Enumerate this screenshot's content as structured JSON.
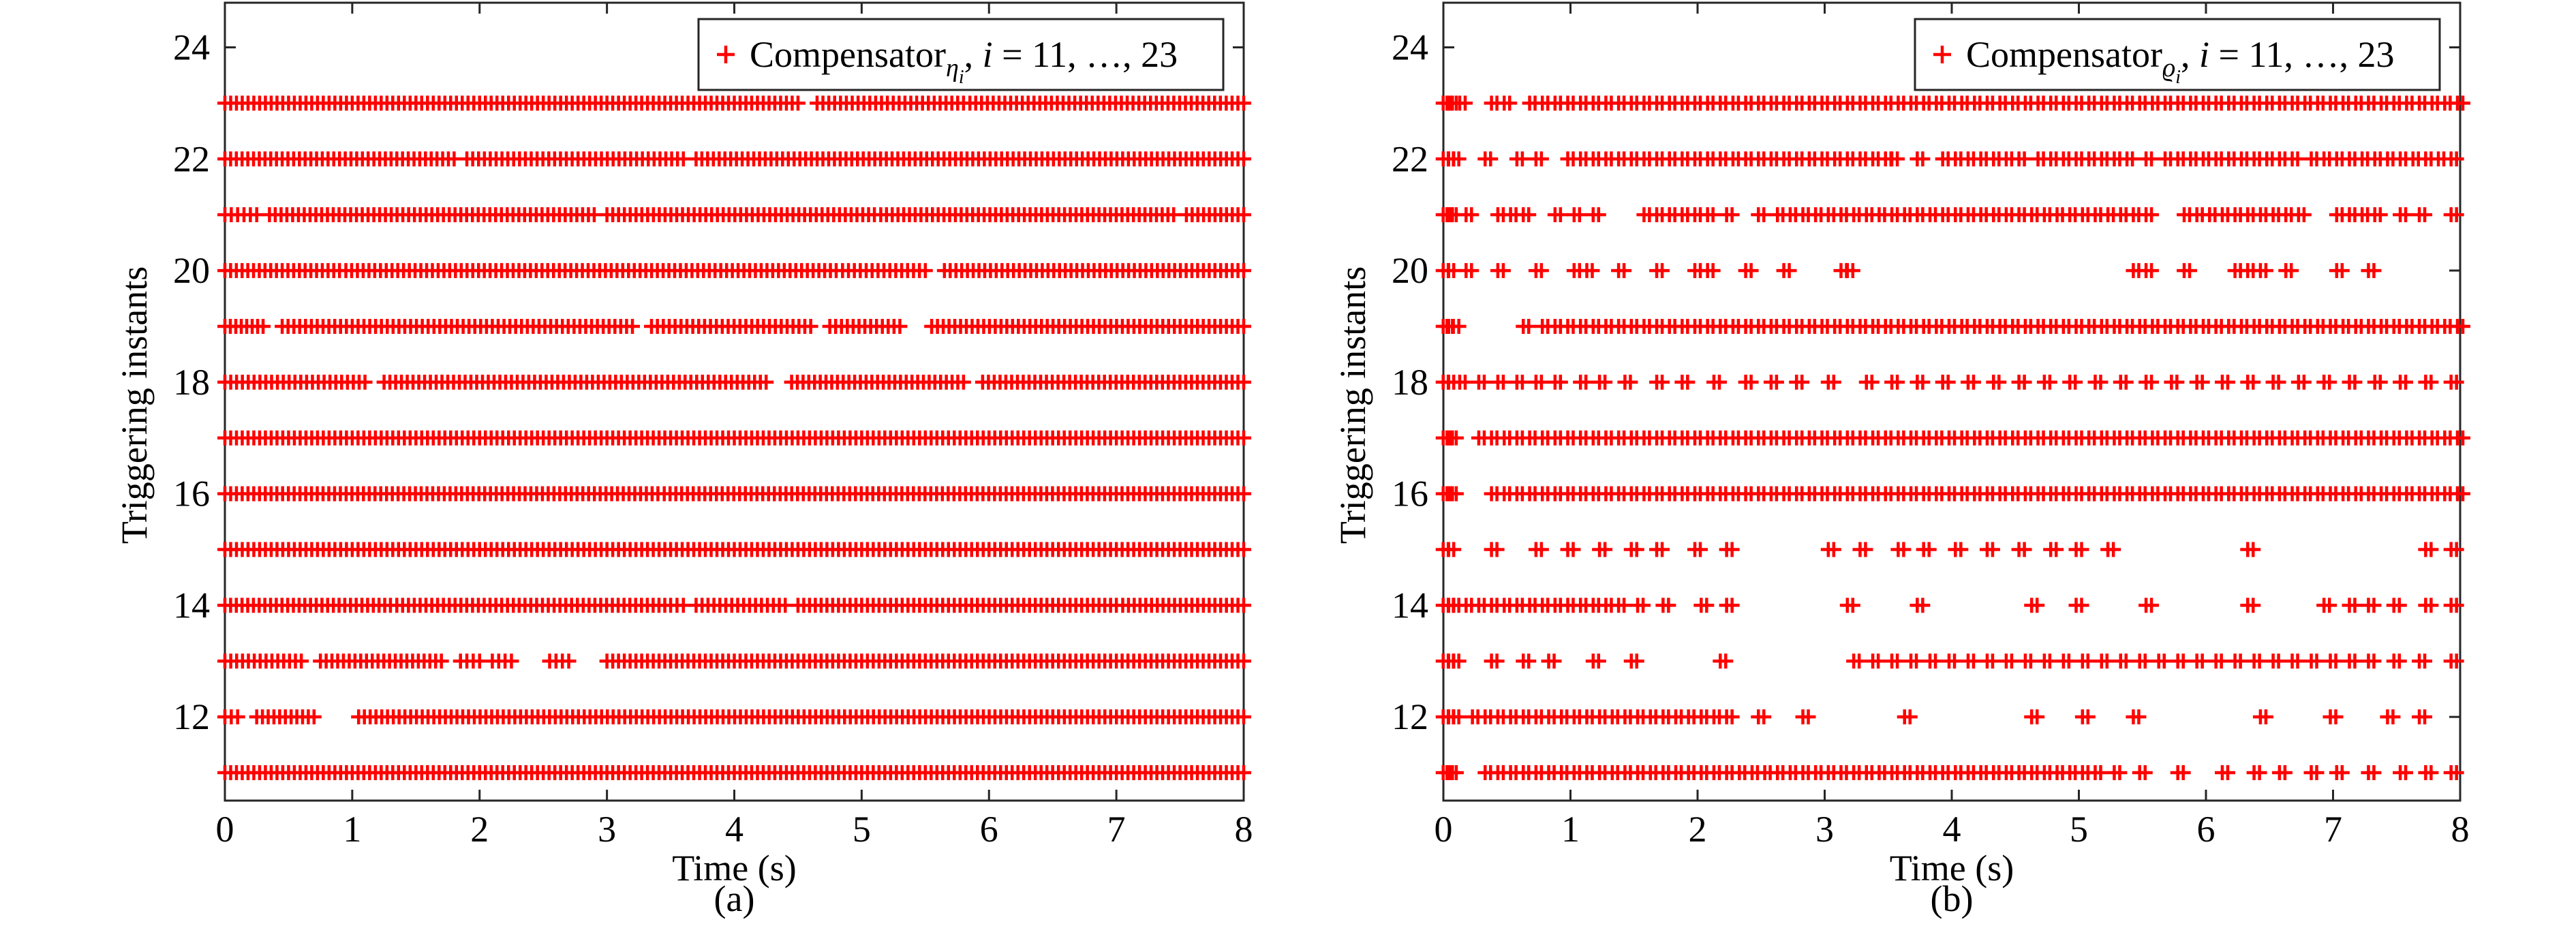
{
  "chart_data": [
    {
      "type": "scatter",
      "panel": "(a)",
      "xlabel": "Time (s)",
      "ylabel": "Triggering instants",
      "xlim": [
        0,
        8
      ],
      "ylim": [
        10.5,
        24.8
      ],
      "xticks": [
        0,
        1,
        2,
        3,
        4,
        5,
        6,
        7,
        8
      ],
      "yticks": [
        12,
        14,
        16,
        18,
        20,
        22,
        24
      ],
      "grid": false,
      "legend_position": "top-right",
      "marker": "+",
      "color": "#ff0000",
      "legend": {
        "text": "Compensator",
        "subscript": "η",
        "subsub": "i",
        "suffix_i": "i",
        "suffix_rest": " = 11, …, 23"
      },
      "series": [
        {
          "y": 11,
          "segments": [
            [
              0.0,
              8.0
            ]
          ]
        },
        {
          "y": 12,
          "segments": [
            [
              0.0,
              0.1
            ],
            [
              0.25,
              0.7
            ],
            [
              1.05,
              8.0
            ]
          ]
        },
        {
          "y": 13,
          "segments": [
            [
              0.0,
              0.6
            ],
            [
              0.75,
              1.7
            ],
            [
              1.85,
              2.0
            ],
            [
              2.1,
              2.25
            ],
            [
              2.55,
              2.7
            ],
            [
              3.0,
              8.0
            ]
          ]
        },
        {
          "y": 14,
          "segments": [
            [
              0.0,
              1.3
            ],
            [
              1.35,
              3.5
            ],
            [
              3.55,
              3.6
            ],
            [
              3.7,
              4.4
            ],
            [
              4.5,
              7.0
            ],
            [
              7.05,
              8.0
            ]
          ]
        },
        {
          "y": 15,
          "segments": [
            [
              0.0,
              8.0
            ]
          ]
        },
        {
          "y": 16,
          "segments": [
            [
              0.0,
              3.4
            ],
            [
              3.45,
              8.0
            ]
          ]
        },
        {
          "y": 17,
          "segments": [
            [
              0.0,
              8.0
            ]
          ]
        },
        {
          "y": 18,
          "segments": [
            [
              0.0,
              1.1
            ],
            [
              1.25,
              4.25
            ],
            [
              4.45,
              5.8
            ],
            [
              5.95,
              8.0
            ]
          ]
        },
        {
          "y": 19,
          "segments": [
            [
              0.0,
              0.3
            ],
            [
              0.45,
              3.2
            ],
            [
              3.35,
              4.6
            ],
            [
              4.75,
              5.3
            ],
            [
              5.55,
              8.0
            ]
          ]
        },
        {
          "y": 20,
          "segments": [
            [
              0.0,
              0.9
            ],
            [
              0.95,
              4.8
            ],
            [
              4.85,
              5.5
            ],
            [
              5.65,
              8.0
            ]
          ]
        },
        {
          "y": 21,
          "segments": [
            [
              0.0,
              0.25
            ],
            [
              0.35,
              2.9
            ],
            [
              3.0,
              5.1
            ],
            [
              5.15,
              7.45
            ],
            [
              7.55,
              8.0
            ]
          ]
        },
        {
          "y": 22,
          "segments": [
            [
              0.0,
              1.8
            ],
            [
              1.9,
              3.6
            ],
            [
              3.7,
              8.0
            ]
          ]
        },
        {
          "y": 23,
          "segments": [
            [
              0.0,
              4.5
            ],
            [
              4.65,
              5.8
            ],
            [
              5.85,
              8.0
            ]
          ]
        }
      ]
    },
    {
      "type": "scatter",
      "panel": "(b)",
      "xlabel": "Time (s)",
      "ylabel": "Triggering instants",
      "xlim": [
        0,
        8
      ],
      "ylim": [
        10.5,
        24.8
      ],
      "xticks": [
        0,
        1,
        2,
        3,
        4,
        5,
        6,
        7,
        8
      ],
      "yticks": [
        12,
        14,
        16,
        18,
        20,
        22,
        24
      ],
      "grid": false,
      "legend_position": "top-right",
      "marker": "+",
      "color": "#ff0000",
      "legend": {
        "text": "Compensator",
        "subscript": "ϱ",
        "subsub": "i",
        "suffix_i": "i",
        "suffix_rest": " = 11, …, 23"
      },
      "series": [
        {
          "y": 11,
          "points": [
            0.02,
            0.05,
            0.08,
            0.35,
            0.45,
            0.55,
            0.65,
            0.75,
            0.85,
            0.95,
            1.05,
            1.15,
            1.25,
            1.35,
            1.45,
            1.55,
            1.65,
            1.75,
            1.85,
            1.95,
            2.05,
            2.15,
            2.25,
            2.35,
            2.45,
            2.55,
            2.65,
            2.75,
            2.85,
            2.95,
            3.05,
            3.15,
            3.25,
            3.35,
            3.45,
            3.55,
            3.65,
            3.75,
            3.85,
            3.95,
            4.05,
            4.15,
            4.25,
            4.35,
            4.45,
            4.55,
            4.65,
            4.75,
            4.85,
            4.95,
            5.05,
            5.15,
            5.3,
            5.5,
            5.8,
            6.15,
            6.4,
            6.6,
            6.85,
            7.05,
            7.3,
            7.55,
            7.75,
            7.95
          ]
        },
        {
          "y": 12,
          "points": [
            0.02,
            0.06,
            0.1,
            0.25,
            0.35,
            0.45,
            0.55,
            0.65,
            0.75,
            0.85,
            0.95,
            1.05,
            1.15,
            1.25,
            1.35,
            1.45,
            1.55,
            1.65,
            1.75,
            1.85,
            1.95,
            2.05,
            2.15,
            2.25,
            2.5,
            2.85,
            3.65,
            4.65,
            5.05,
            5.45,
            6.45,
            7.0,
            7.45,
            7.7
          ]
        },
        {
          "y": 13,
          "points": [
            0.02,
            0.06,
            0.1,
            0.4,
            0.65,
            0.85,
            1.2,
            1.5,
            2.2,
            3.25,
            3.4,
            3.55,
            3.7,
            3.85,
            4.0,
            4.15,
            4.3,
            4.45,
            4.6,
            4.75,
            4.9,
            5.05,
            5.2,
            5.35,
            5.5,
            5.65,
            5.8,
            5.95,
            6.1,
            6.25,
            6.4,
            6.55,
            6.7,
            6.85,
            7.0,
            7.15,
            7.3,
            7.5,
            7.7,
            7.95
          ]
        },
        {
          "y": 14,
          "points": [
            0.02,
            0.06,
            0.1,
            0.2,
            0.3,
            0.4,
            0.5,
            0.6,
            0.7,
            0.8,
            0.9,
            1.0,
            1.1,
            1.2,
            1.3,
            1.4,
            1.55,
            1.75,
            2.05,
            2.25,
            3.2,
            3.75,
            4.65,
            5.0,
            5.55,
            6.35,
            6.95,
            7.15,
            7.3,
            7.5,
            7.75,
            7.95
          ]
        },
        {
          "y": 15,
          "points": [
            0.02,
            0.06,
            0.4,
            0.75,
            1.0,
            1.25,
            1.5,
            1.7,
            2.0,
            2.25,
            3.05,
            3.3,
            3.6,
            3.8,
            4.05,
            4.3,
            4.55,
            4.8,
            5.0,
            5.25,
            6.35,
            7.75,
            7.95
          ]
        },
        {
          "y": 16,
          "points": [
            0.02,
            0.05,
            0.08,
            0.4,
            0.5,
            0.6,
            0.7,
            0.8,
            0.9,
            1.0,
            1.1,
            1.2,
            1.3,
            1.4,
            1.5,
            1.6,
            1.7,
            1.8,
            1.9,
            2.0,
            2.1,
            2.2,
            2.3,
            2.4,
            2.5,
            2.6,
            2.7,
            2.8,
            2.9,
            3.0,
            3.1,
            3.2,
            3.3,
            3.4,
            3.5,
            3.6,
            3.7,
            3.8,
            3.9,
            4.0,
            4.1,
            4.2,
            4.3,
            4.4,
            4.5,
            4.6,
            4.7,
            4.8,
            4.9,
            5.0,
            5.1,
            5.2,
            5.3,
            5.4,
            5.5,
            5.6,
            5.7,
            5.8,
            5.9,
            6.0,
            6.1,
            6.2,
            6.3,
            6.4,
            6.5,
            6.6,
            6.7,
            6.8,
            6.9,
            7.0,
            7.1,
            7.2,
            7.3,
            7.4,
            7.5,
            7.6,
            7.7,
            7.8,
            7.9,
            8.0
          ]
        },
        {
          "y": 17,
          "points": [
            0.02,
            0.05,
            0.08,
            0.3,
            0.4,
            0.5,
            0.6,
            0.7,
            0.8,
            0.9,
            1.0,
            1.1,
            1.2,
            1.3,
            1.4,
            1.5,
            1.6,
            1.7,
            1.8,
            1.9,
            2.0,
            2.1,
            2.2,
            2.3,
            2.4,
            2.5,
            2.6,
            2.7,
            2.8,
            2.9,
            3.0,
            3.1,
            3.2,
            3.3,
            3.4,
            3.5,
            3.6,
            3.7,
            3.8,
            3.9,
            4.0,
            4.1,
            4.2,
            4.3,
            4.4,
            4.5,
            4.6,
            4.7,
            4.8,
            4.9,
            5.0,
            5.1,
            5.2,
            5.3,
            5.4,
            5.5,
            5.6,
            5.7,
            5.8,
            5.9,
            6.0,
            6.1,
            6.2,
            6.3,
            6.4,
            6.5,
            6.6,
            6.7,
            6.8,
            6.9,
            7.0,
            7.1,
            7.2,
            7.3,
            7.4,
            7.5,
            7.6,
            7.7,
            7.8,
            7.9,
            8.0
          ]
        },
        {
          "y": 18,
          "points": [
            0.02,
            0.06,
            0.15,
            0.3,
            0.45,
            0.6,
            0.75,
            0.9,
            1.1,
            1.25,
            1.45,
            1.7,
            1.9,
            2.15,
            2.4,
            2.6,
            2.8,
            3.05,
            3.35,
            3.55,
            3.75,
            3.95,
            4.15,
            4.35,
            4.55,
            4.75,
            4.95,
            5.15,
            5.35,
            5.55,
            5.75,
            5.95,
            6.15,
            6.35,
            6.55,
            6.75,
            6.95,
            7.15,
            7.35,
            7.55,
            7.75,
            7.95
          ]
        },
        {
          "y": 19,
          "points": [
            0.02,
            0.05,
            0.1,
            0.65,
            0.8,
            0.9,
            1.0,
            1.1,
            1.2,
            1.3,
            1.4,
            1.5,
            1.6,
            1.7,
            1.8,
            1.9,
            2.0,
            2.1,
            2.2,
            2.3,
            2.4,
            2.5,
            2.6,
            2.7,
            2.8,
            2.9,
            3.0,
            3.1,
            3.2,
            3.3,
            3.4,
            3.5,
            3.6,
            3.7,
            3.8,
            3.9,
            4.0,
            4.1,
            4.2,
            4.3,
            4.4,
            4.5,
            4.6,
            4.7,
            4.8,
            4.9,
            5.0,
            5.1,
            5.2,
            5.3,
            5.4,
            5.5,
            5.6,
            5.7,
            5.8,
            5.9,
            6.0,
            6.1,
            6.2,
            6.3,
            6.4,
            6.5,
            6.6,
            6.7,
            6.8,
            6.9,
            7.0,
            7.1,
            7.2,
            7.3,
            7.4,
            7.5,
            7.6,
            7.7,
            7.8,
            7.9,
            8.0
          ]
        },
        {
          "y": 20,
          "points": [
            0.02,
            0.06,
            0.2,
            0.45,
            0.75,
            1.05,
            1.15,
            1.4,
            1.7,
            2.0,
            2.1,
            2.4,
            2.7,
            3.15,
            3.2,
            5.45,
            5.55,
            5.85,
            6.25,
            6.35,
            6.45,
            6.65,
            7.05,
            7.3
          ]
        },
        {
          "y": 21,
          "points": [
            0.02,
            0.05,
            0.08,
            0.2,
            0.45,
            0.55,
            0.65,
            0.9,
            1.05,
            1.2,
            1.6,
            1.7,
            1.8,
            1.9,
            2.0,
            2.1,
            2.25,
            2.5,
            2.65,
            2.75,
            2.85,
            2.95,
            3.05,
            3.15,
            3.25,
            3.35,
            3.45,
            3.55,
            3.65,
            3.75,
            3.85,
            3.95,
            4.05,
            4.15,
            4.25,
            4.35,
            4.45,
            4.55,
            4.65,
            4.75,
            4.85,
            4.95,
            5.05,
            5.15,
            5.25,
            5.35,
            5.45,
            5.55,
            5.85,
            5.95,
            6.05,
            6.15,
            6.25,
            6.35,
            6.45,
            6.55,
            6.65,
            6.75,
            7.05,
            7.15,
            7.25,
            7.35,
            7.55,
            7.7,
            7.95
          ]
        },
        {
          "y": 22,
          "points": [
            0.02,
            0.06,
            0.1,
            0.35,
            0.6,
            0.75,
            1.0,
            1.1,
            1.2,
            1.3,
            1.4,
            1.5,
            1.6,
            1.7,
            1.8,
            1.9,
            2.0,
            2.1,
            2.2,
            2.3,
            2.4,
            2.5,
            2.6,
            2.7,
            2.8,
            2.9,
            3.0,
            3.1,
            3.2,
            3.3,
            3.4,
            3.5,
            3.55,
            3.75,
            3.95,
            4.05,
            4.15,
            4.25,
            4.35,
            4.45,
            4.55,
            4.7,
            4.8,
            4.9,
            5.0,
            5.1,
            5.2,
            5.3,
            5.4,
            5.55,
            5.7,
            5.8,
            5.9,
            6.0,
            6.1,
            6.2,
            6.3,
            6.4,
            6.5,
            6.6,
            6.7,
            6.85,
            6.95,
            7.05,
            7.15,
            7.25,
            7.35,
            7.45,
            7.55,
            7.65,
            7.75,
            7.85,
            7.95
          ]
        },
        {
          "y": 23,
          "points": [
            0.02,
            0.05,
            0.08,
            0.15,
            0.4,
            0.5,
            0.7,
            0.8,
            0.9,
            1.0,
            1.1,
            1.2,
            1.3,
            1.4,
            1.5,
            1.6,
            1.7,
            1.8,
            1.9,
            2.0,
            2.1,
            2.2,
            2.3,
            2.4,
            2.5,
            2.6,
            2.7,
            2.8,
            2.9,
            3.0,
            3.1,
            3.2,
            3.3,
            3.4,
            3.5,
            3.6,
            3.7,
            3.8,
            3.9,
            4.0,
            4.1,
            4.2,
            4.3,
            4.4,
            4.5,
            4.6,
            4.7,
            4.8,
            4.9,
            5.0,
            5.1,
            5.2,
            5.3,
            5.4,
            5.5,
            5.6,
            5.7,
            5.8,
            5.9,
            6.0,
            6.1,
            6.2,
            6.3,
            6.4,
            6.5,
            6.6,
            6.7,
            6.8,
            6.9,
            7.0,
            7.1,
            7.2,
            7.3,
            7.4,
            7.5,
            7.6,
            7.7,
            7.8,
            7.9,
            8.0
          ]
        }
      ]
    }
  ]
}
